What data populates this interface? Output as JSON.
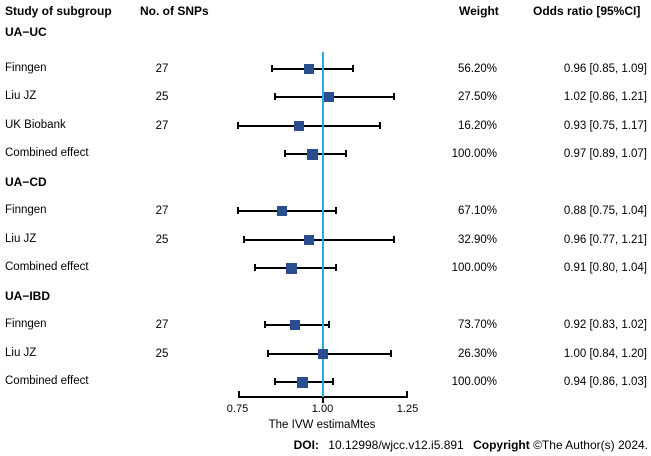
{
  "header": {
    "study_col": "Study of subgroup",
    "snps_col": "No. of SNPs",
    "weight_col": "Weight",
    "or_col": "Odds ratio [95%CI]"
  },
  "chart_data": {
    "type": "forest",
    "xlabel": "The IVW estimaMtes",
    "x_axis": {
      "range": [
        0.75,
        1.25
      ],
      "ticks": [
        0.75,
        1.0,
        1.25
      ],
      "tick_labels": [
        "0.75",
        "1.00",
        "1.25"
      ],
      "ref_line": 1.0
    },
    "colors": {
      "marker": "#2a4d8f",
      "ref_line": "#2da9e1",
      "ci_line": "#000000"
    },
    "rows": [
      {
        "kind": "group",
        "label": "UA−UC"
      },
      {
        "kind": "study",
        "label": "Finngen",
        "snps": "27",
        "weight": "56.20%",
        "or_text": "0.96 [0.85, 1.09]",
        "or": 0.96,
        "ci_low": 0.85,
        "ci_high": 1.09
      },
      {
        "kind": "study",
        "label": "Liu JZ",
        "snps": "25",
        "weight": "27.50%",
        "or_text": "1.02 [0.86, 1.21]",
        "or": 1.02,
        "ci_low": 0.86,
        "ci_high": 1.21
      },
      {
        "kind": "study",
        "label": "UK Biobank",
        "snps": "27",
        "weight": "16.20%",
        "or_text": "0.93 [0.75, 1.17]",
        "or": 0.93,
        "ci_low": 0.75,
        "ci_high": 1.17
      },
      {
        "kind": "combined",
        "label": "Combined effect",
        "weight": "100.00%",
        "or_text": "0.97 [0.89, 1.07]",
        "or": 0.97,
        "ci_low": 0.89,
        "ci_high": 1.07
      },
      {
        "kind": "group",
        "label": "UA−CD"
      },
      {
        "kind": "study",
        "label": "Finngen",
        "snps": "27",
        "weight": "67.10%",
        "or_text": "0.88 [0.75, 1.04]",
        "or": 0.88,
        "ci_low": 0.75,
        "ci_high": 1.04
      },
      {
        "kind": "study",
        "label": "Liu JZ",
        "snps": "25",
        "weight": "32.90%",
        "or_text": "0.96 [0.77, 1.21]",
        "or": 0.96,
        "ci_low": 0.77,
        "ci_high": 1.21
      },
      {
        "kind": "combined",
        "label": "Combined effect",
        "weight": "100.00%",
        "or_text": "0.91 [0.80, 1.04]",
        "or": 0.91,
        "ci_low": 0.8,
        "ci_high": 1.04
      },
      {
        "kind": "group",
        "label": "UA−IBD"
      },
      {
        "kind": "study",
        "label": "Finngen",
        "snps": "27",
        "weight": "73.70%",
        "or_text": "0.92 [0.83, 1.02]",
        "or": 0.92,
        "ci_low": 0.83,
        "ci_high": 1.02
      },
      {
        "kind": "study",
        "label": "Liu JZ",
        "snps": "25",
        "weight": "26.30%",
        "or_text": "1.00 [0.84, 1.20]",
        "or": 1.0,
        "ci_low": 0.84,
        "ci_high": 1.2
      },
      {
        "kind": "combined",
        "label": "Combined effect",
        "weight": "100.00%",
        "or_text": "0.94 [0.86, 1.03]",
        "or": 0.94,
        "ci_low": 0.86,
        "ci_high": 1.03
      }
    ]
  },
  "footer": {
    "doi_label": "DOI:",
    "doi_value": "10.12998/wjcc.v12.i5.891",
    "copyright_label": "Copyright",
    "copyright_value": "©The Author(s) 2024."
  }
}
